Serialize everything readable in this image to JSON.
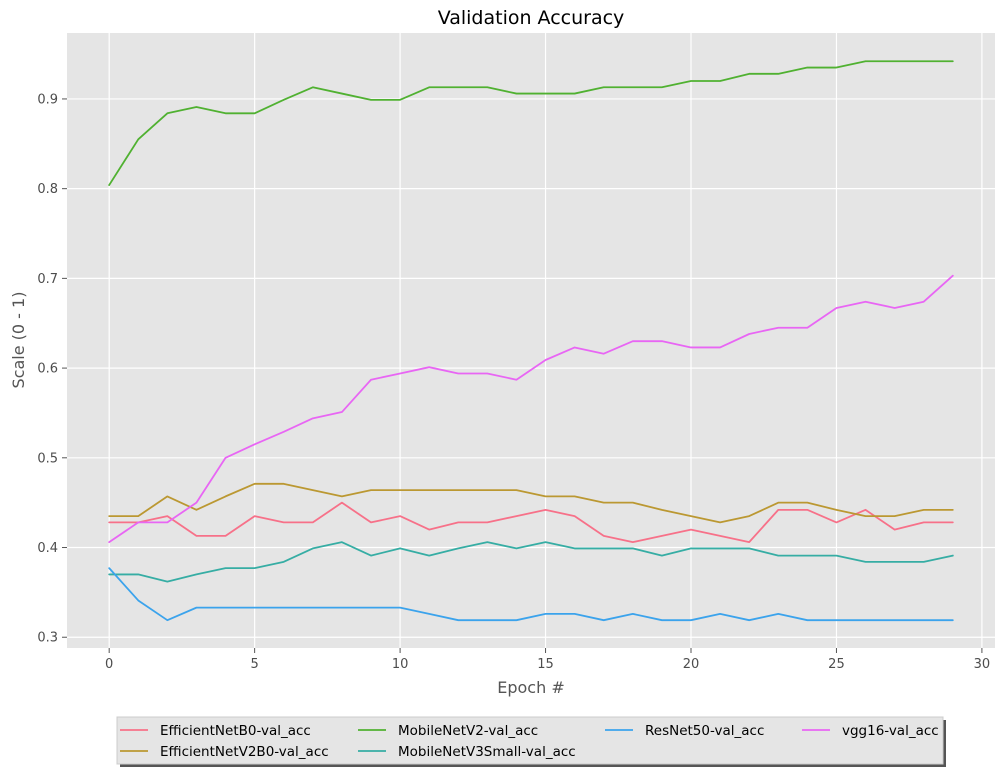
{
  "chart_data": {
    "type": "line",
    "title": "Validation Accuracy",
    "xlabel": "Epoch #",
    "ylabel": "Scale (0 - 1)",
    "xlim": [
      -1.45,
      30.45
    ],
    "ylim": [
      0.288,
      0.9735
    ],
    "xticks": [
      0,
      5,
      10,
      15,
      20,
      25,
      30
    ],
    "yticks": [
      0.3,
      0.4,
      0.5,
      0.6,
      0.7,
      0.8,
      0.9
    ],
    "grid": true,
    "legend_position": "bottom-center, outside plot",
    "background": "#e5e5e5",
    "x": [
      0,
      1,
      2,
      3,
      4,
      5,
      6,
      7,
      8,
      9,
      10,
      11,
      12,
      13,
      14,
      15,
      16,
      17,
      18,
      19,
      20,
      21,
      22,
      23,
      24,
      25,
      26,
      27,
      28,
      29
    ],
    "series": [
      {
        "name": "EfficientNetB0-val_acc",
        "color": "#f77189",
        "values": [
          0.428,
          0.428,
          0.435,
          0.413,
          0.413,
          0.435,
          0.428,
          0.428,
          0.45,
          0.428,
          0.435,
          0.42,
          0.428,
          0.428,
          0.435,
          0.442,
          0.435,
          0.413,
          0.406,
          0.413,
          0.42,
          0.413,
          0.406,
          0.442,
          0.442,
          0.428,
          0.442,
          0.42,
          0.428,
          0.428
        ]
      },
      {
        "name": "EfficientNetV2B0-val_acc",
        "color": "#bb9832",
        "values": [
          0.435,
          0.435,
          0.457,
          0.442,
          0.457,
          0.471,
          0.471,
          0.464,
          0.457,
          0.464,
          0.464,
          0.464,
          0.464,
          0.464,
          0.464,
          0.457,
          0.457,
          0.45,
          0.45,
          0.442,
          0.435,
          0.428,
          0.435,
          0.45,
          0.45,
          0.442,
          0.435,
          0.435,
          0.442,
          0.442
        ]
      },
      {
        "name": "MobileNetV2-val_acc",
        "color": "#50b131",
        "values": [
          0.804,
          0.855,
          0.884,
          0.891,
          0.884,
          0.884,
          0.899,
          0.913,
          0.906,
          0.899,
          0.899,
          0.913,
          0.913,
          0.913,
          0.906,
          0.906,
          0.906,
          0.913,
          0.913,
          0.913,
          0.92,
          0.92,
          0.928,
          0.928,
          0.935,
          0.935,
          0.942,
          0.942,
          0.942,
          0.942
        ]
      },
      {
        "name": "MobileNetV3Small-val_acc",
        "color": "#36ada4",
        "values": [
          0.37,
          0.37,
          0.362,
          0.37,
          0.377,
          0.377,
          0.384,
          0.399,
          0.406,
          0.391,
          0.399,
          0.391,
          0.399,
          0.406,
          0.399,
          0.406,
          0.399,
          0.399,
          0.399,
          0.391,
          0.399,
          0.399,
          0.399,
          0.391,
          0.391,
          0.391,
          0.384,
          0.384,
          0.384,
          0.391
        ]
      },
      {
        "name": "ResNet50-val_acc",
        "color": "#3ba3ec",
        "values": [
          0.377,
          0.341,
          0.319,
          0.333,
          0.333,
          0.333,
          0.333,
          0.333,
          0.333,
          0.333,
          0.333,
          0.326,
          0.319,
          0.319,
          0.319,
          0.326,
          0.326,
          0.319,
          0.326,
          0.319,
          0.319,
          0.326,
          0.319,
          0.326,
          0.319,
          0.319,
          0.319,
          0.319,
          0.319,
          0.319
        ]
      },
      {
        "name": "vgg16-val_acc",
        "color": "#e866f4",
        "values": [
          0.406,
          0.428,
          0.428,
          0.45,
          0.5,
          0.515,
          0.529,
          0.544,
          0.551,
          0.587,
          0.594,
          0.601,
          0.594,
          0.594,
          0.587,
          0.609,
          0.623,
          0.616,
          0.63,
          0.63,
          0.623,
          0.623,
          0.638,
          0.645,
          0.645,
          0.667,
          0.674,
          0.667,
          0.674,
          0.703
        ]
      }
    ],
    "legend": {
      "columns": [
        [
          "EfficientNetB0-val_acc",
          "EfficientNetV2B0-val_acc"
        ],
        [
          "MobileNetV2-val_acc",
          "MobileNetV3Small-val_acc"
        ],
        [
          "ResNet50-val_acc"
        ],
        [
          "vgg16-val_acc"
        ]
      ]
    }
  }
}
